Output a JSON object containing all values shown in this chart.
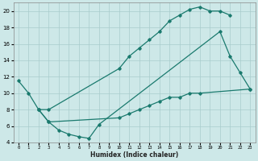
{
  "xlabel": "Humidex (Indice chaleur)",
  "bg_color": "#cde8e8",
  "grid_color": "#a8cccc",
  "line_color": "#1a7a6e",
  "xlim": [
    -0.5,
    23.5
  ],
  "ylim": [
    4,
    21
  ],
  "yticks": [
    4,
    6,
    8,
    10,
    12,
    14,
    16,
    18,
    20
  ],
  "xticks": [
    0,
    1,
    2,
    3,
    4,
    5,
    6,
    7,
    8,
    9,
    10,
    11,
    12,
    13,
    14,
    15,
    16,
    17,
    18,
    19,
    20,
    21,
    22,
    23
  ],
  "line1_x": [
    0,
    1,
    2,
    3,
    10,
    11,
    12,
    13,
    14,
    15,
    16,
    17,
    18,
    19,
    20,
    21
  ],
  "line1_y": [
    11.5,
    10,
    8,
    8,
    13,
    14.5,
    15.5,
    16.5,
    17.5,
    18.8,
    19.5,
    20.2,
    20.5,
    20.0,
    20.0,
    19.5
  ],
  "line2_x": [
    2,
    3,
    4,
    5,
    6,
    7,
    8,
    20,
    21,
    22,
    23
  ],
  "line2_y": [
    8,
    6.5,
    5.5,
    5.0,
    4.7,
    4.5,
    6.2,
    17.5,
    14.5,
    12.5,
    10.5
  ],
  "line3_x": [
    2,
    3,
    10,
    11,
    12,
    13,
    14,
    15,
    16,
    17,
    18,
    23
  ],
  "line3_y": [
    8,
    6.5,
    7.0,
    7.5,
    8.0,
    8.5,
    9.0,
    9.5,
    9.5,
    10.0,
    10.0,
    10.5
  ]
}
